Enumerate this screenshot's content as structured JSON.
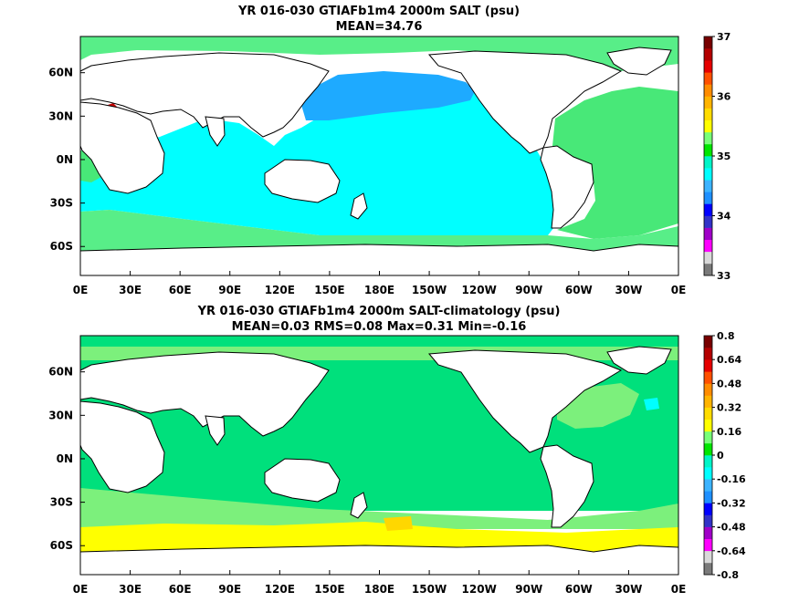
{
  "chart_data": [
    {
      "type": "heatmap",
      "title": "YR 016-030 GTIAFb1m4 2000m SALT (psu)",
      "subtitle": "MEAN=34.76",
      "x_ticks": [
        "0E",
        "30E",
        "60E",
        "90E",
        "120E",
        "150E",
        "180E",
        "150W",
        "120W",
        "90W",
        "60W",
        "30W",
        "0E"
      ],
      "y_ticks": [
        "60N",
        "30N",
        "0N",
        "30S",
        "60S"
      ],
      "xlim": [
        0,
        360
      ],
      "ylim": [
        -80,
        85
      ],
      "colorbar": {
        "labels": [
          "37",
          "36",
          "35",
          "34",
          "33"
        ],
        "range": [
          33,
          37
        ],
        "colors": [
          "#7a7a7a",
          "#d9d9d9",
          "#ff00ff",
          "#a000c8",
          "#3232c8",
          "#0000ff",
          "#1e90ff",
          "#3cb4ff",
          "#00ffff",
          "#00f5c8",
          "#00e600",
          "#78ff78",
          "#ffff00",
          "#ffdc00",
          "#ffb400",
          "#ff8c00",
          "#ff5000",
          "#e60000",
          "#b40000",
          "#780000"
        ]
      },
      "colors": {
        "land": "#ffffff",
        "ocean_main": "#00ffff",
        "ocean_north_pacific": "#1eaaff",
        "ocean_atlantic": "#48e878",
        "southern_ocean": "#58ee88",
        "coast": "#000000"
      }
    },
    {
      "type": "heatmap",
      "title": "YR 016-030 GTIAFb1m4 2000m SALT-climatology (psu)",
      "subtitle": "MEAN=0.03   RMS=0.08   Max=0.31   Min=-0.16",
      "x_ticks": [
        "0E",
        "30E",
        "60E",
        "90E",
        "120E",
        "150E",
        "180E",
        "150W",
        "120W",
        "90W",
        "60W",
        "30W",
        "0E"
      ],
      "y_ticks": [
        "60N",
        "30N",
        "0N",
        "30S",
        "60S"
      ],
      "xlim": [
        0,
        360
      ],
      "ylim": [
        -80,
        85
      ],
      "colorbar": {
        "labels": [
          "0.8",
          "0.64",
          "0.48",
          "0.32",
          "0.16",
          "0",
          "-0.16",
          "-0.32",
          "-0.48",
          "-0.64",
          "-0.8"
        ],
        "range": [
          -0.8,
          0.8
        ],
        "colors": [
          "#7a7a7a",
          "#d9d9d9",
          "#ff00ff",
          "#a000c8",
          "#3232c8",
          "#0000ff",
          "#1e90ff",
          "#3cb4ff",
          "#00ffff",
          "#00f5c8",
          "#00e600",
          "#78ff78",
          "#ffff00",
          "#ffdc00",
          "#ffb400",
          "#ff8c00",
          "#ff5000",
          "#e60000",
          "#b40000",
          "#780000"
        ]
      },
      "colors": {
        "land": "#ffffff",
        "ocean_main": "#00e07c",
        "light_green": "#7cf07c",
        "yellow": "#ffff00",
        "orange_patch": "#ffd700",
        "coast": "#000000"
      }
    }
  ]
}
